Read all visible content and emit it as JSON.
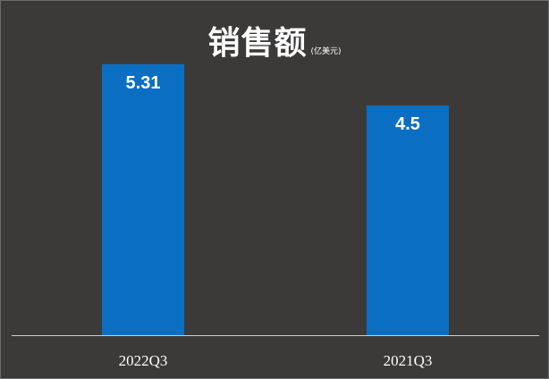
{
  "chart_data": {
    "type": "bar",
    "title": "销售额",
    "subtitle": "(亿美元)",
    "categories": [
      "2022Q3",
      "2021Q3"
    ],
    "values": [
      5.31,
      4.5
    ],
    "data_labels": [
      "5.31",
      "4.5"
    ],
    "ylim": [
      0,
      6.2
    ],
    "grid": false,
    "legend": "none",
    "bar_color": "#0a6fc2",
    "background_color": "#3b3a39",
    "text_color": "#ffffff"
  }
}
